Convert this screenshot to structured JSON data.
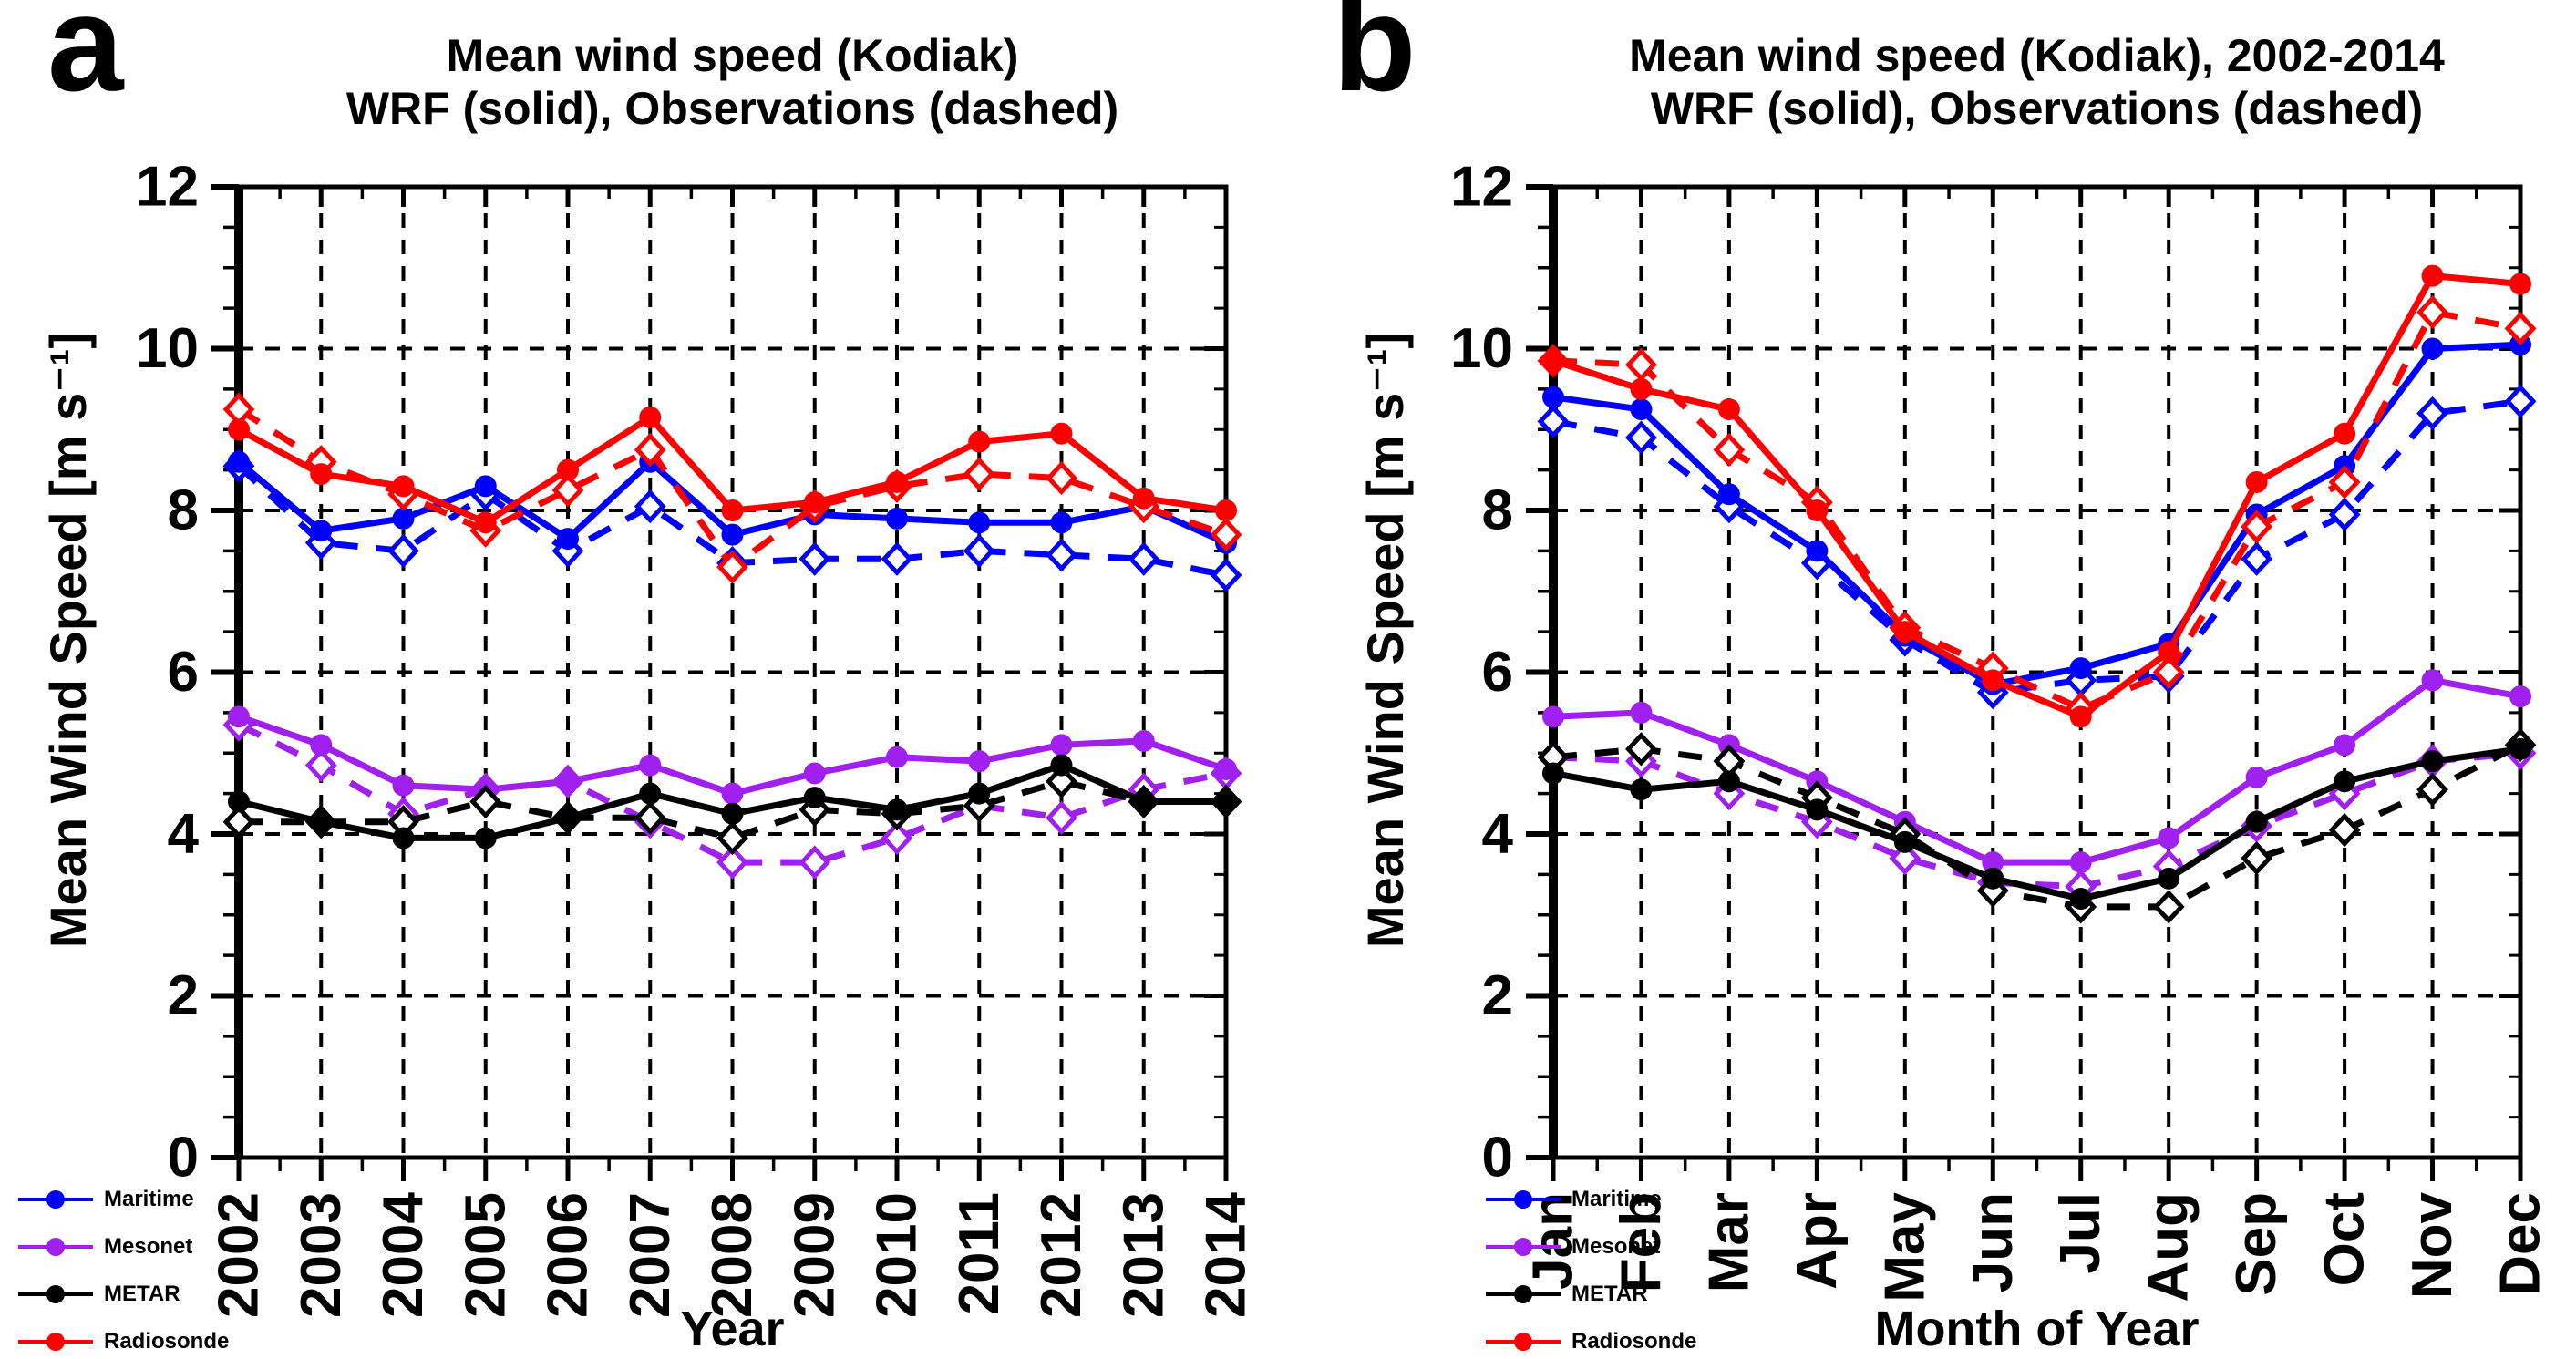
{
  "figure": {
    "background": "#ffffff",
    "ink_color": "#000000",
    "grid_style": "dashed"
  },
  "legend": {
    "entries": [
      {
        "label": "Maritime",
        "color": "#0000ff"
      },
      {
        "label": "Mesonet",
        "color": "#a020f0"
      },
      {
        "label": "METAR",
        "color": "#000000"
      },
      {
        "label": "Radiosonde",
        "color": "#ff0000"
      }
    ],
    "position": "bottom-left"
  },
  "chart_data": [
    {
      "type": "line",
      "panel_letter": "a",
      "title": "Mean wind speed (Kodiak)",
      "subtitle": "WRF (solid), Observations (dashed)",
      "xlabel": "Year",
      "ylabel": "Mean Wind Speed [m s⁻¹]",
      "ylim": [
        0,
        12
      ],
      "yticks": [
        0,
        2,
        4,
        6,
        8,
        10,
        12
      ],
      "y_minor_step": 0.5,
      "grid": "dashed black horizontal at major yticks and vertical at each category",
      "legend_position": "bottom-left",
      "categories": [
        "2002",
        "2003",
        "2004",
        "2005",
        "2006",
        "2007",
        "2008",
        "2009",
        "2010",
        "2011",
        "2012",
        "2013",
        "2014"
      ],
      "series": [
        {
          "name": "Mesonet Observations",
          "color": "#a020f0",
          "style": "dashed",
          "marker": "open-diamond",
          "values": [
            5.35,
            4.85,
            4.25,
            4.55,
            4.65,
            4.15,
            3.65,
            3.65,
            3.95,
            4.35,
            4.2,
            4.55,
            4.75
          ]
        },
        {
          "name": "Mesonet WRF",
          "color": "#a020f0",
          "style": "solid",
          "marker": "filled-circle",
          "values": [
            5.45,
            5.1,
            4.6,
            4.55,
            4.65,
            4.85,
            4.5,
            4.75,
            4.95,
            4.9,
            5.1,
            5.15,
            4.8
          ]
        },
        {
          "name": "METAR Observations",
          "color": "#000000",
          "style": "dashed",
          "marker": "open-diamond",
          "values": [
            4.15,
            4.15,
            4.15,
            4.4,
            4.2,
            4.2,
            3.95,
            4.3,
            4.25,
            4.35,
            4.65,
            4.4,
            4.4
          ]
        },
        {
          "name": "METAR WRF",
          "color": "#000000",
          "style": "solid",
          "marker": "filled-circle",
          "values": [
            4.4,
            4.15,
            3.95,
            3.95,
            4.2,
            4.5,
            4.25,
            4.45,
            4.3,
            4.5,
            4.85,
            4.4,
            4.4
          ]
        },
        {
          "name": "Maritime Observations",
          "color": "#0000ff",
          "style": "dashed",
          "marker": "open-diamond",
          "values": [
            8.55,
            7.6,
            7.5,
            8.2,
            7.5,
            8.05,
            7.35,
            7.4,
            7.4,
            7.5,
            7.45,
            7.4,
            7.2
          ]
        },
        {
          "name": "Maritime WRF",
          "color": "#0000ff",
          "style": "solid",
          "marker": "filled-circle",
          "values": [
            8.6,
            7.75,
            7.9,
            8.3,
            7.65,
            8.6,
            7.7,
            7.95,
            7.9,
            7.85,
            7.85,
            8.05,
            7.6
          ]
        },
        {
          "name": "Radiosonde Observations",
          "color": "#ff0000",
          "style": "dashed",
          "marker": "open-diamond",
          "values": [
            9.25,
            8.6,
            8.2,
            7.75,
            8.25,
            8.75,
            7.3,
            8.05,
            8.3,
            8.45,
            8.4,
            8.05,
            7.7
          ]
        },
        {
          "name": "Radiosonde WRF",
          "color": "#ff0000",
          "style": "solid",
          "marker": "filled-circle",
          "values": [
            9.0,
            8.45,
            8.3,
            7.85,
            8.5,
            9.15,
            8.0,
            8.1,
            8.35,
            8.85,
            8.95,
            8.15,
            8.0
          ]
        }
      ]
    },
    {
      "type": "line",
      "panel_letter": "b",
      "title": "Mean wind speed (Kodiak), 2002-2014",
      "subtitle": "WRF (solid), Observations (dashed)",
      "xlabel": "Month of Year",
      "ylabel": "Mean Wind Speed [m s⁻¹]",
      "ylim": [
        0,
        12
      ],
      "yticks": [
        0,
        2,
        4,
        6,
        8,
        10,
        12
      ],
      "y_minor_step": 0.5,
      "grid": "dashed black horizontal at major yticks and vertical at each category",
      "legend_position": "bottom-left",
      "categories": [
        "Jan",
        "Feb",
        "Mar",
        "Apr",
        "May",
        "Jun",
        "Jul",
        "Aug",
        "Sep",
        "Oct",
        "Nov",
        "Dec"
      ],
      "series": [
        {
          "name": "Mesonet Observations",
          "color": "#a020f0",
          "style": "dashed",
          "marker": "open-diamond",
          "values": [
            4.95,
            4.9,
            4.5,
            4.15,
            3.7,
            3.4,
            3.35,
            3.6,
            4.1,
            4.5,
            4.9,
            5.0
          ]
        },
        {
          "name": "Mesonet WRF",
          "color": "#a020f0",
          "style": "solid",
          "marker": "filled-circle",
          "values": [
            5.45,
            5.5,
            5.1,
            4.65,
            4.15,
            3.65,
            3.65,
            3.95,
            4.7,
            5.1,
            5.9,
            5.7
          ]
        },
        {
          "name": "METAR Observations",
          "color": "#000000",
          "style": "dashed",
          "marker": "open-diamond",
          "values": [
            4.95,
            5.05,
            4.9,
            4.45,
            4.0,
            3.3,
            3.1,
            3.1,
            3.7,
            4.05,
            4.55,
            5.1
          ]
        },
        {
          "name": "METAR WRF",
          "color": "#000000",
          "style": "solid",
          "marker": "filled-circle",
          "values": [
            4.75,
            4.55,
            4.65,
            4.3,
            3.9,
            3.45,
            3.2,
            3.45,
            4.15,
            4.65,
            4.9,
            5.05
          ]
        },
        {
          "name": "Maritime Observations",
          "color": "#0000ff",
          "style": "dashed",
          "marker": "open-diamond",
          "values": [
            9.1,
            8.9,
            8.05,
            7.35,
            6.4,
            5.75,
            5.9,
            5.95,
            7.4,
            7.95,
            9.2,
            9.35
          ]
        },
        {
          "name": "Maritime WRF",
          "color": "#0000ff",
          "style": "solid",
          "marker": "filled-circle",
          "values": [
            9.4,
            9.25,
            8.2,
            7.5,
            6.45,
            5.85,
            6.05,
            6.35,
            7.95,
            8.55,
            10.0,
            10.05
          ]
        },
        {
          "name": "Radiosonde Observations",
          "color": "#ff0000",
          "style": "dashed",
          "marker": "open-diamond",
          "values": [
            9.85,
            9.8,
            8.75,
            8.1,
            6.55,
            6.05,
            5.55,
            6.0,
            7.8,
            8.35,
            10.45,
            10.25
          ]
        },
        {
          "name": "Radiosonde WRF",
          "color": "#ff0000",
          "style": "solid",
          "marker": "filled-circle",
          "values": [
            9.85,
            9.5,
            9.25,
            8.0,
            6.5,
            5.9,
            5.45,
            6.25,
            8.35,
            8.95,
            10.9,
            10.8
          ]
        }
      ]
    }
  ]
}
